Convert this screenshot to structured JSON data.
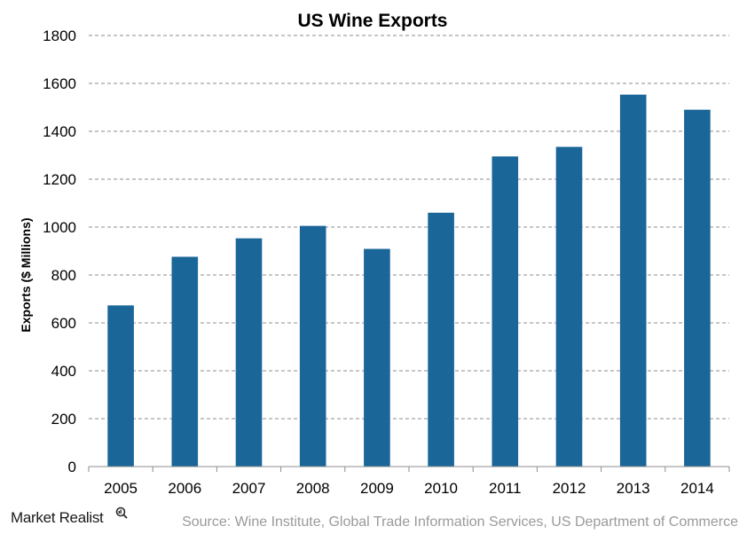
{
  "chart_data": {
    "type": "bar",
    "title": "US Wine Exports",
    "xlabel": "",
    "ylabel": "Exports ($ Millions)",
    "categories": [
      "2005",
      "2006",
      "2007",
      "2008",
      "2009",
      "2010",
      "2011",
      "2012",
      "2013",
      "2014"
    ],
    "values": [
      673,
      876,
      953,
      1005,
      909,
      1060,
      1295,
      1335,
      1553,
      1490
    ],
    "ylim": [
      0,
      1800
    ],
    "yticks": [
      0,
      200,
      400,
      600,
      800,
      1000,
      1200,
      1400,
      1600,
      1800
    ],
    "grid": true,
    "legend": "none",
    "bar_color": "#1a6699"
  },
  "footer": {
    "source": "Source: Wine Institute, Global Trade Information Services, US Department of Commerce",
    "brand": "Market Realist",
    "brand_icon": "magnifier-icon"
  }
}
